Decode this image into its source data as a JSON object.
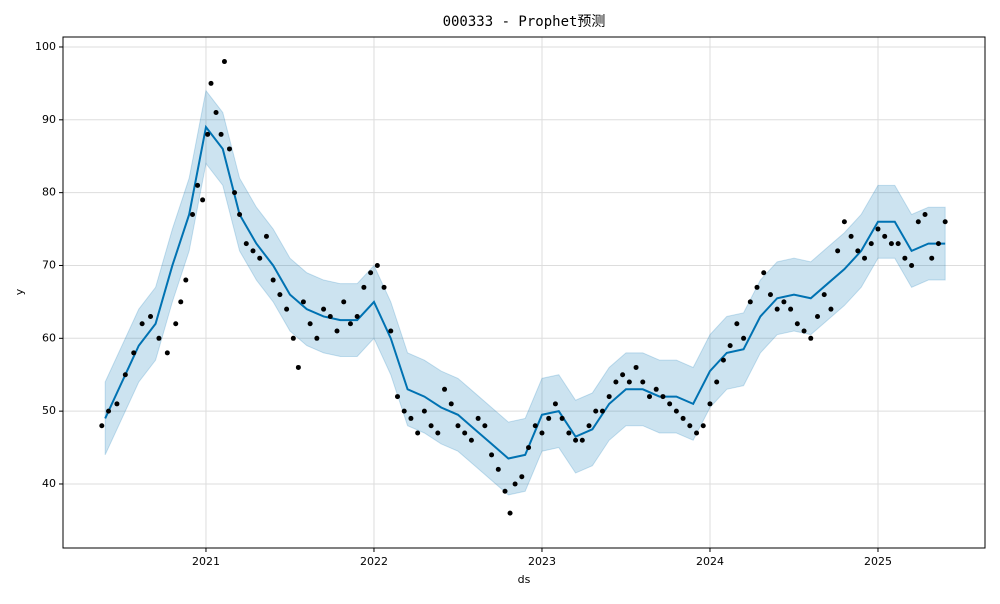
{
  "chart_data": {
    "type": "line",
    "title": "000333 - Prophet预测",
    "xlabel": "ds",
    "ylabel": "y",
    "xlim": [
      2020.149,
      2025.637
    ],
    "ylim": [
      31.21,
      101.37
    ],
    "xticks": [
      2021,
      2022,
      2023,
      2024,
      2025
    ],
    "yticks": [
      40,
      50,
      60,
      70,
      80,
      90,
      100
    ],
    "grid": true,
    "forecast": {
      "color": "#0072B2",
      "x": [
        2020.4,
        2020.5,
        2020.6,
        2020.7,
        2020.8,
        2020.9,
        2021.0,
        2021.1,
        2021.2,
        2021.3,
        2021.4,
        2021.5,
        2021.6,
        2021.7,
        2021.8,
        2021.9,
        2022.0,
        2022.1,
        2022.2,
        2022.3,
        2022.4,
        2022.5,
        2022.6,
        2022.7,
        2022.8,
        2022.9,
        2023.0,
        2023.1,
        2023.2,
        2023.3,
        2023.4,
        2023.5,
        2023.6,
        2023.7,
        2023.8,
        2023.9,
        2024.0,
        2024.1,
        2024.2,
        2024.3,
        2024.4,
        2024.5,
        2024.6,
        2024.7,
        2024.8,
        2024.9,
        2025.0,
        2025.1,
        2025.2,
        2025.3,
        2025.4
      ],
      "values": [
        49,
        54,
        59,
        62,
        70,
        77,
        89,
        86,
        77,
        73,
        70,
        66,
        64,
        63,
        62.5,
        62.5,
        65,
        60,
        53,
        52,
        50.5,
        49.5,
        47.5,
        45.5,
        43.5,
        44,
        49.5,
        50,
        46.5,
        47.5,
        51,
        53,
        53,
        52,
        52,
        51,
        55.5,
        58,
        58.5,
        63,
        65.5,
        66,
        65.5,
        67.5,
        69.5,
        72,
        76,
        76,
        72,
        73,
        73
      ],
      "lower": [
        44,
        49,
        54,
        57,
        65,
        72,
        84,
        81,
        72,
        68,
        65,
        61,
        59,
        58,
        57.5,
        57.5,
        60,
        55,
        48,
        47,
        45.5,
        44.5,
        42.5,
        40.5,
        38.5,
        39,
        44.5,
        45,
        41.5,
        42.5,
        46,
        48,
        48,
        47,
        47,
        46,
        50.5,
        53,
        53.5,
        58,
        60.5,
        61,
        60.5,
        62.5,
        64.5,
        67,
        71,
        71,
        67,
        68,
        68
      ],
      "upper": [
        54,
        59,
        64,
        67,
        75,
        82,
        94,
        91,
        82,
        78,
        75,
        71,
        69,
        68,
        67.5,
        67.5,
        70,
        65,
        58,
        57,
        55.5,
        54.5,
        52.5,
        50.5,
        48.5,
        49,
        54.5,
        55,
        51.5,
        52.5,
        56,
        58,
        58,
        57,
        57,
        56,
        60.5,
        63,
        63.5,
        68,
        70.5,
        71,
        70.5,
        72.5,
        74.5,
        77,
        81,
        81,
        77,
        78,
        78
      ]
    },
    "points": {
      "color": "#000000",
      "x": [
        2020.38,
        2020.42,
        2020.47,
        2020.52,
        2020.57,
        2020.62,
        2020.67,
        2020.72,
        2020.77,
        2020.82,
        2020.85,
        2020.88,
        2020.92,
        2020.95,
        2020.98,
        2021.01,
        2021.03,
        2021.06,
        2021.09,
        2021.11,
        2021.14,
        2021.17,
        2021.2,
        2021.24,
        2021.28,
        2021.32,
        2021.36,
        2021.4,
        2021.44,
        2021.48,
        2021.52,
        2021.55,
        2021.58,
        2021.62,
        2021.66,
        2021.7,
        2021.74,
        2021.78,
        2021.82,
        2021.86,
        2021.9,
        2021.94,
        2021.98,
        2022.02,
        2022.06,
        2022.1,
        2022.14,
        2022.18,
        2022.22,
        2022.26,
        2022.3,
        2022.34,
        2022.38,
        2022.42,
        2022.46,
        2022.5,
        2022.54,
        2022.58,
        2022.62,
        2022.66,
        2022.7,
        2022.74,
        2022.78,
        2022.81,
        2022.84,
        2022.88,
        2022.92,
        2022.96,
        2023.0,
        2023.04,
        2023.08,
        2023.12,
        2023.16,
        2023.2,
        2023.24,
        2023.28,
        2023.32,
        2023.36,
        2023.4,
        2023.44,
        2023.48,
        2023.52,
        2023.56,
        2023.6,
        2023.64,
        2023.68,
        2023.72,
        2023.76,
        2023.8,
        2023.84,
        2023.88,
        2023.92,
        2023.96,
        2024.0,
        2024.04,
        2024.08,
        2024.12,
        2024.16,
        2024.2,
        2024.24,
        2024.28,
        2024.32,
        2024.36,
        2024.4,
        2024.44,
        2024.48,
        2024.52,
        2024.56,
        2024.6,
        2024.64,
        2024.68,
        2024.72,
        2024.76,
        2024.8,
        2024.84,
        2024.88,
        2024.92,
        2024.96,
        2025.0,
        2025.04,
        2025.08,
        2025.12,
        2025.16,
        2025.2,
        2025.24,
        2025.28,
        2025.32,
        2025.36,
        2025.4
      ],
      "values": [
        48,
        50,
        51,
        55,
        58,
        62,
        63,
        60,
        58,
        62,
        65,
        68,
        77,
        81,
        79,
        88,
        95,
        91,
        88,
        98,
        86,
        80,
        77,
        73,
        72,
        71,
        74,
        68,
        66,
        64,
        60,
        56,
        65,
        62,
        60,
        64,
        63,
        61,
        65,
        62,
        63,
        67,
        69,
        70,
        67,
        61,
        52,
        50,
        49,
        47,
        50,
        48,
        47,
        53,
        51,
        48,
        47,
        46,
        49,
        48,
        44,
        42,
        39,
        36,
        40,
        41,
        45,
        48,
        47,
        49,
        51,
        49,
        47,
        46,
        46,
        48,
        50,
        50,
        52,
        54,
        55,
        54,
        56,
        54,
        52,
        53,
        52,
        51,
        50,
        49,
        48,
        47,
        48,
        51,
        54,
        57,
        59,
        62,
        60,
        65,
        67,
        69,
        66,
        64,
        65,
        64,
        62,
        61,
        60,
        63,
        66,
        64,
        72,
        76,
        74,
        72,
        71,
        73,
        75,
        74,
        73,
        73,
        71,
        70,
        76,
        77,
        71,
        73,
        76
      ]
    }
  }
}
